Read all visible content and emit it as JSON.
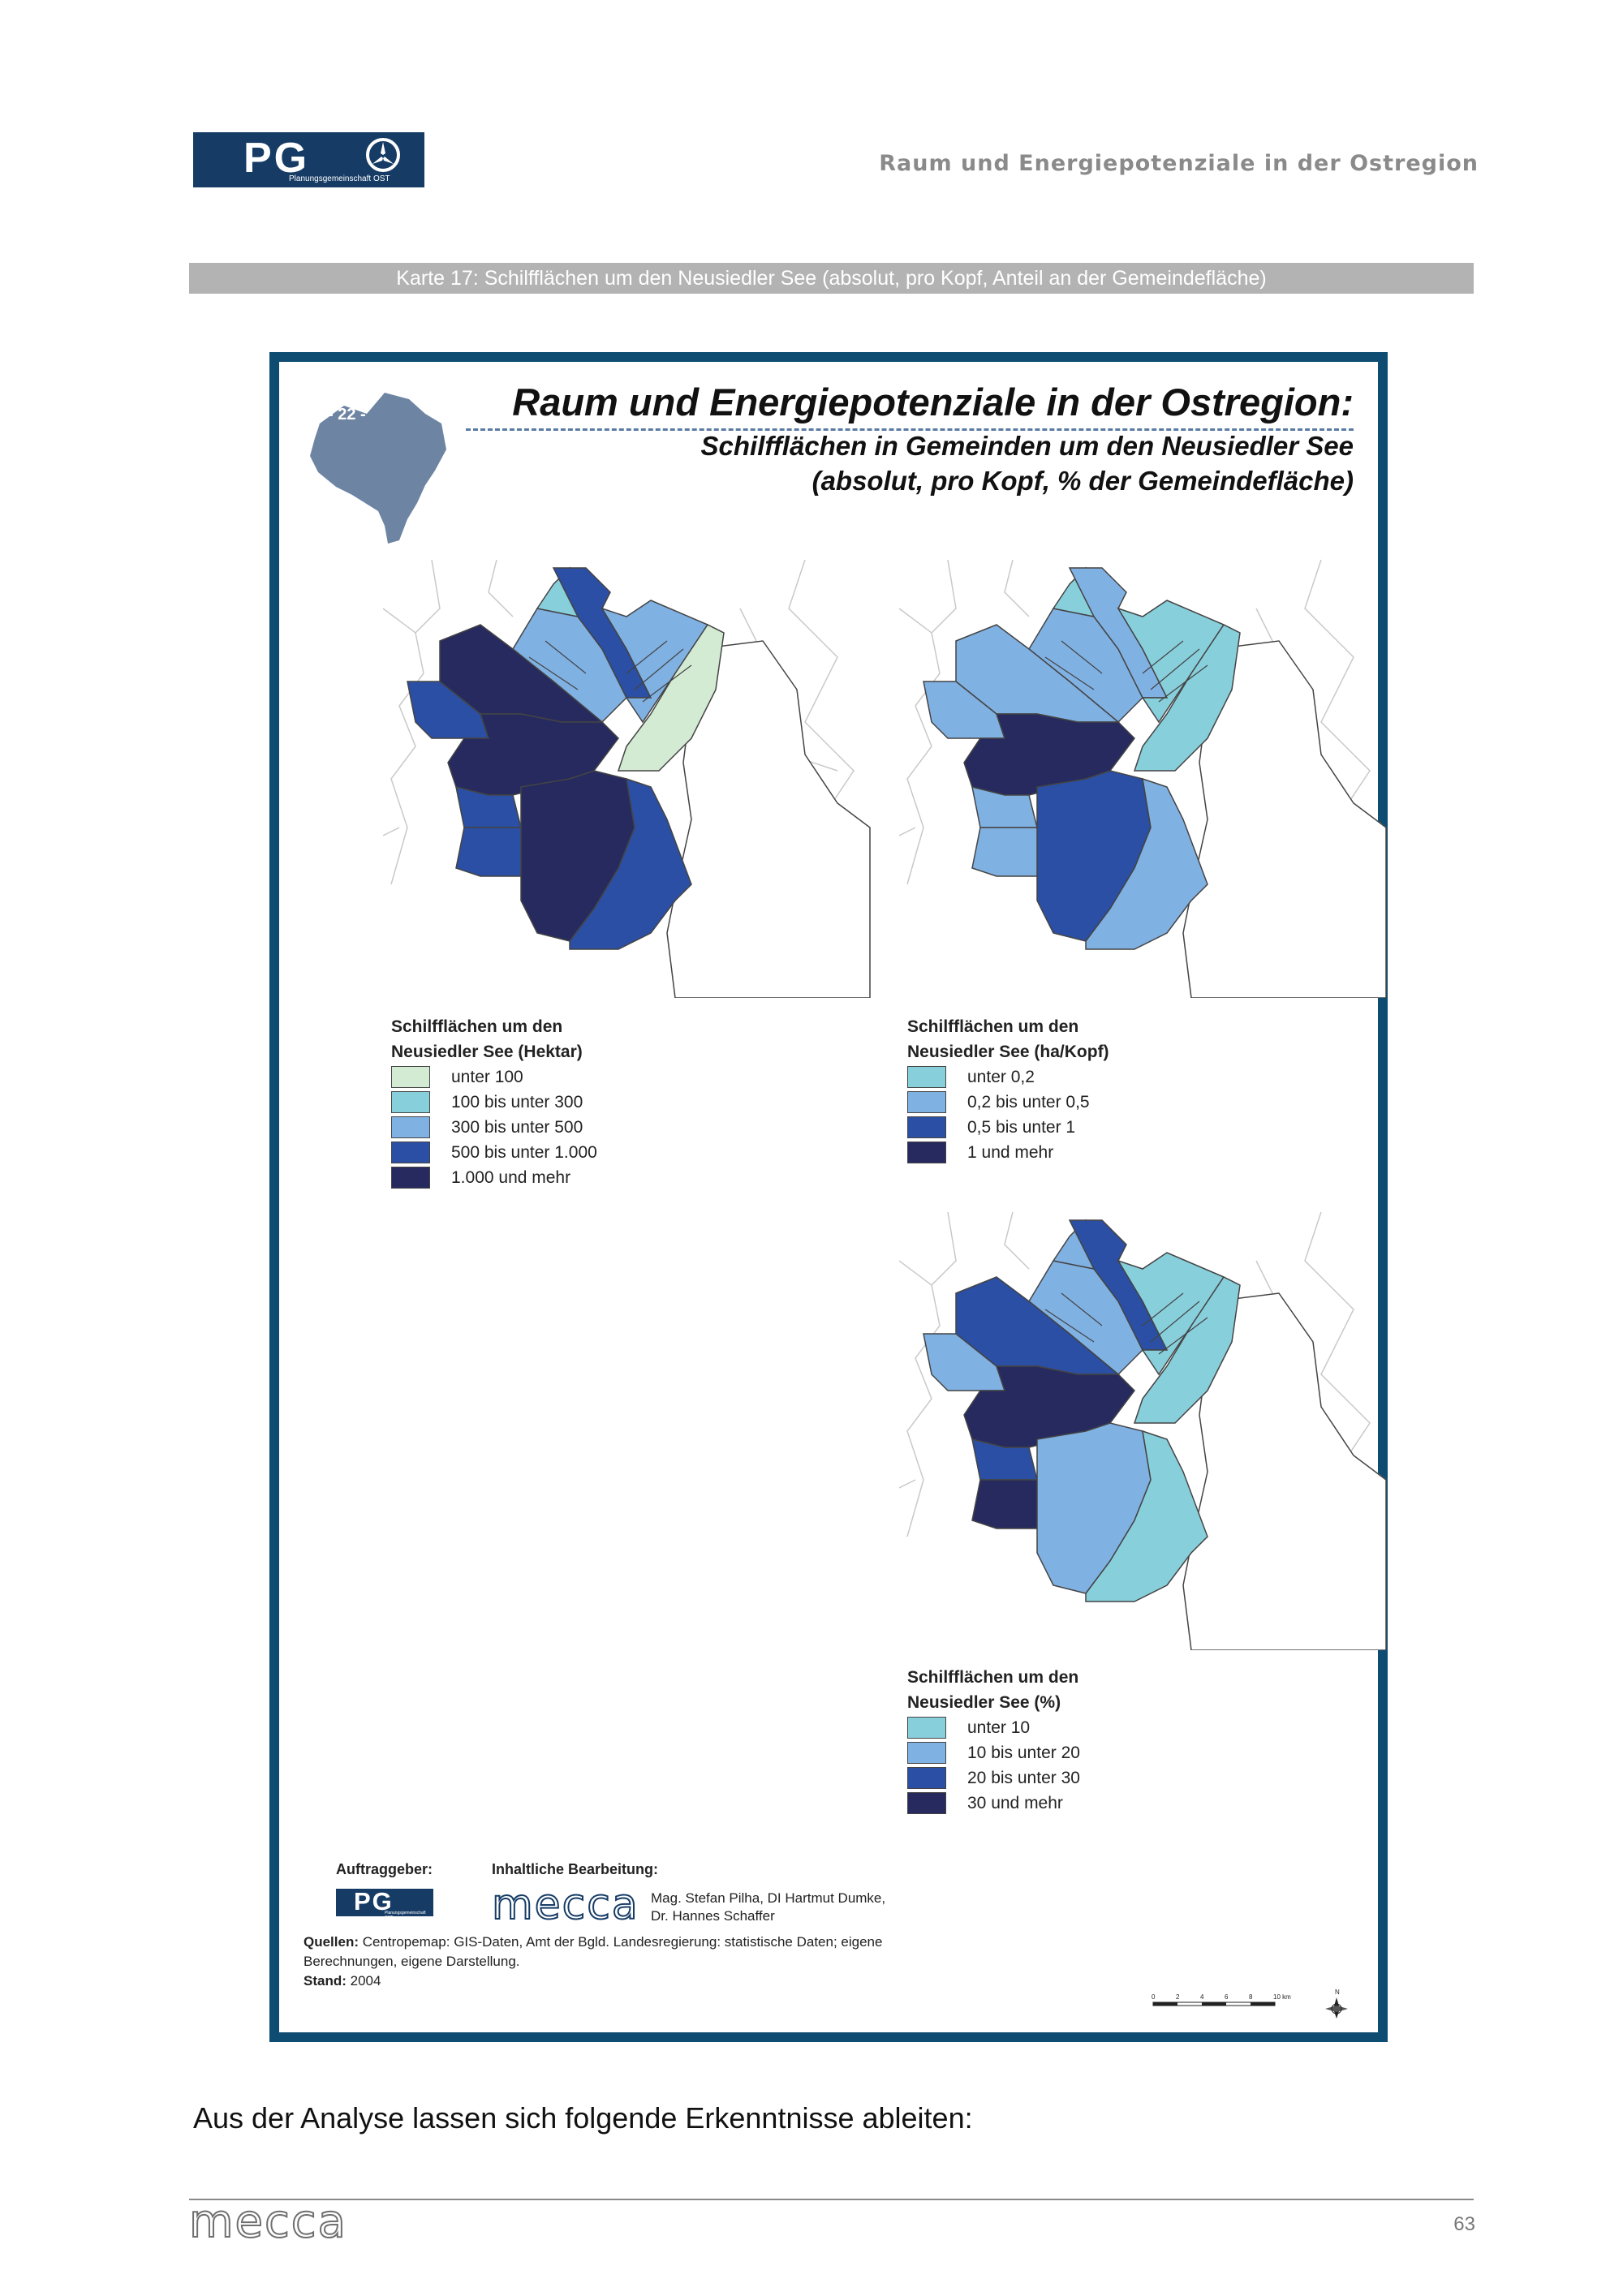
{
  "header": {
    "logo_letters": "PG",
    "logo_subtitle": "Planungsgemeinschaft OST",
    "title": "Raum und Energiepotenziale in der Ostregion"
  },
  "caption": "Karte 17: Schilfflächen um den Neusiedler See (absolut, pro Kopf, Anteil an der Gemeindefläche)",
  "map": {
    "region_label": "- 22 -",
    "title": "Raum und Energiepotenziale in der Ostregion:",
    "subtitle_line1": "Schilfflächen in Gemeinden um den Neusiedler See",
    "subtitle_line2": "(absolut, pro Kopf, % der Gemeindefläche)",
    "legends": [
      {
        "title_line1": "Schilfflächen um den",
        "title_line2": "Neusiedler See (Hektar)",
        "items": [
          {
            "label": "unter 100",
            "color": "#d3ebd3"
          },
          {
            "label": "100 bis unter 300",
            "color": "#88cfdc"
          },
          {
            "label": "300 bis unter 500",
            "color": "#80b1e3"
          },
          {
            "label": "500 bis unter 1.000",
            "color": "#2a4fa4"
          },
          {
            "label": "1.000 und mehr",
            "color": "#262a5e"
          }
        ]
      },
      {
        "title_line1": "Schilfflächen um den",
        "title_line2": "Neusiedler See (ha/Kopf)",
        "items": [
          {
            "label": "unter 0,2",
            "color": "#88cfdc"
          },
          {
            "label": "0,2 bis unter 0,5",
            "color": "#80b1e3"
          },
          {
            "label": "0,5 bis unter 1",
            "color": "#2a4fa4"
          },
          {
            "label": "1 und mehr",
            "color": "#262a5e"
          }
        ]
      },
      {
        "title_line1": "Schilfflächen um den",
        "title_line2": "Neusiedler See (%)",
        "items": [
          {
            "label": "unter 10",
            "color": "#88cfdc"
          },
          {
            "label": "10 bis unter 20",
            "color": "#80b1e3"
          },
          {
            "label": "20 bis unter 30",
            "color": "#2a4fa4"
          },
          {
            "label": "30 und mehr",
            "color": "#262a5e"
          }
        ]
      }
    ],
    "credits": {
      "client_heading": "Auftraggeber:",
      "client_logo_letters": "PG",
      "client_logo_subtitle": "Planungsgemeinschaft OST",
      "editor_heading": "Inhaltliche Bearbeitung:",
      "editor_logo": "mecca",
      "authors_line1": "Mag. Stefan Pilha, DI Hartmut Dumke,",
      "authors_line2": "Dr. Hannes Schaffer",
      "sources_label": "Quellen:",
      "sources_line1": "Centropemap: GIS-Daten, Amt der Bgld. Landesregierung: statistische Daten; eigene",
      "sources_line2": "Berechnungen, eigene Darstellung.",
      "date_label": "Stand:",
      "date_value": "2004"
    },
    "scalebar": {
      "ticks": [
        "0",
        "2",
        "4",
        "6",
        "8",
        "10 km"
      ],
      "north": "N"
    }
  },
  "body_text": "Aus der Analyse lassen sich folgende Erkenntnisse ableiten:",
  "footer": {
    "logo": "mecca",
    "page_number": "63"
  }
}
